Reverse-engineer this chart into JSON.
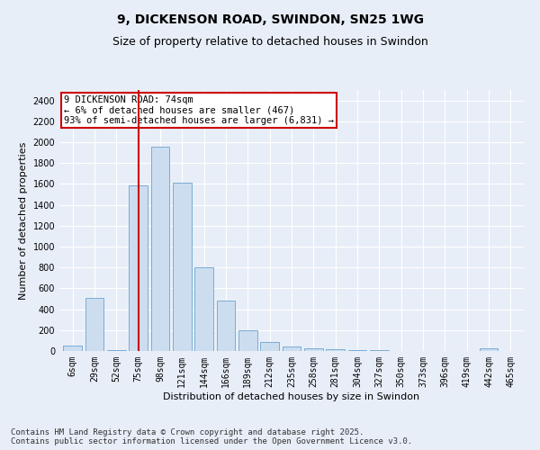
{
  "title": "9, DICKENSON ROAD, SWINDON, SN25 1WG",
  "subtitle": "Size of property relative to detached houses in Swindon",
  "xlabel": "Distribution of detached houses by size in Swindon",
  "ylabel": "Number of detached properties",
  "categories": [
    "6sqm",
    "29sqm",
    "52sqm",
    "75sqm",
    "98sqm",
    "121sqm",
    "144sqm",
    "166sqm",
    "189sqm",
    "212sqm",
    "235sqm",
    "258sqm",
    "281sqm",
    "304sqm",
    "327sqm",
    "350sqm",
    "373sqm",
    "396sqm",
    "419sqm",
    "442sqm",
    "465sqm"
  ],
  "values": [
    50,
    510,
    5,
    1590,
    1960,
    1610,
    800,
    480,
    195,
    90,
    40,
    25,
    18,
    8,
    5,
    3,
    2,
    1,
    1,
    25,
    1
  ],
  "bar_color": "#ccddf0",
  "bar_edge_color": "#7aadd4",
  "vline_x": 3.5,
  "vline_color": "#cc0000",
  "annotation_text": "9 DICKENSON ROAD: 74sqm\n← 6% of detached houses are smaller (467)\n93% of semi-detached houses are larger (6,831) →",
  "annotation_box_color": "#ffffff",
  "annotation_box_edge_color": "#cc0000",
  "annotation_fontsize": 7.5,
  "background_color": "#e8eef8",
  "grid_color": "#ffffff",
  "title_fontsize": 10,
  "subtitle_fontsize": 9,
  "footer_text": "Contains HM Land Registry data © Crown copyright and database right 2025.\nContains public sector information licensed under the Open Government Licence v3.0.",
  "footer_fontsize": 6.5,
  "ylim": [
    0,
    2500
  ],
  "yticks": [
    0,
    200,
    400,
    600,
    800,
    1000,
    1200,
    1400,
    1600,
    1800,
    2000,
    2200,
    2400
  ],
  "ylabel_fontsize": 8,
  "xlabel_fontsize": 8,
  "tick_fontsize": 7
}
